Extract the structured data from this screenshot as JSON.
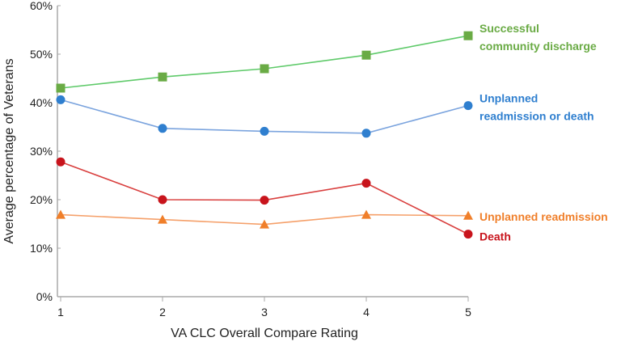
{
  "chart_data": {
    "type": "line",
    "title": "",
    "xlabel": "VA CLC Overall Compare Rating",
    "ylabel": "Average percentage of Veterans",
    "x": [
      1,
      2,
      3,
      4,
      5
    ],
    "x_tick_labels": [
      "1",
      "2",
      "3",
      "4",
      "5"
    ],
    "ylim": [
      0,
      60
    ],
    "y_ticks": [
      0,
      10,
      20,
      30,
      40,
      50,
      60
    ],
    "y_tick_labels": [
      "0%",
      "10%",
      "20%",
      "30%",
      "40%",
      "50%",
      "60%"
    ],
    "grid": false,
    "legend": "inline-right",
    "series": [
      {
        "name_lines": [
          "Successful",
          "community discharge"
        ],
        "color": "#6aab45",
        "line_color": "#5fca6a",
        "marker": "square",
        "values": [
          43.0,
          45.3,
          47.0,
          49.8,
          53.8
        ]
      },
      {
        "name_lines": [
          "Unplanned",
          "readmission or death"
        ],
        "color": "#2f7fcf",
        "line_color": "#7ba4de",
        "marker": "circle",
        "values": [
          40.6,
          34.7,
          34.1,
          33.7,
          39.4
        ]
      },
      {
        "name_lines": [
          "Unplanned readmission"
        ],
        "color": "#f07f2a",
        "line_color": "#f5a06a",
        "marker": "triangle",
        "values": [
          16.9,
          15.9,
          14.9,
          16.9,
          16.7
        ]
      },
      {
        "name_lines": [
          "Death"
        ],
        "color": "#c8141c",
        "line_color": "#d9403f",
        "marker": "circle",
        "values": [
          27.8,
          20.0,
          19.9,
          23.4,
          12.9
        ]
      }
    ]
  }
}
